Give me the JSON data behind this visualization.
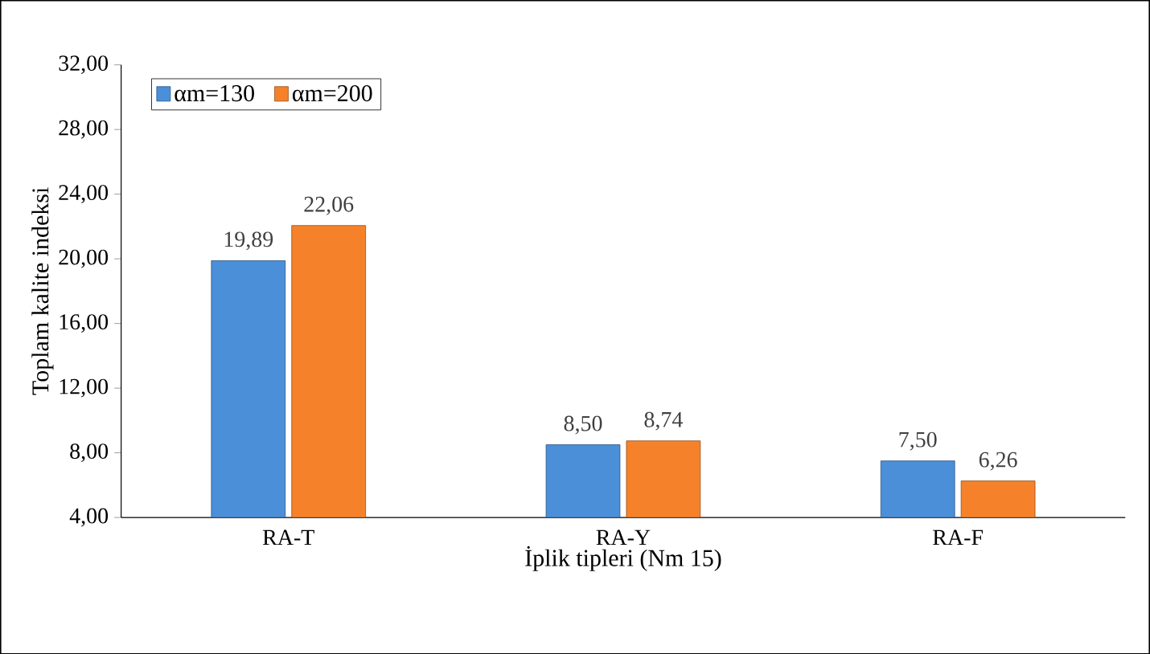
{
  "chart_data": {
    "type": "bar",
    "xlabel": "İplik tipleri (Nm 15)",
    "ylabel": "Toplam kalite indeksi",
    "categories": [
      "RA-T",
      "RA-Y",
      "RA-F"
    ],
    "series": [
      {
        "name": "αm=130",
        "color": "#4a8fd8",
        "values": [
          19.89,
          8.5,
          7.5
        ],
        "value_labels": [
          "19,89",
          "8,50",
          "7,50"
        ]
      },
      {
        "name": "αm=200",
        "color": "#f5822a",
        "values": [
          22.06,
          8.74,
          6.26
        ],
        "value_labels": [
          "22,06",
          "8,74",
          "6,26"
        ]
      }
    ],
    "ylim": [
      4,
      32
    ],
    "yticks": [
      {
        "value": 4,
        "label": "4,00"
      },
      {
        "value": 8,
        "label": "8,00"
      },
      {
        "value": 12,
        "label": "12,00"
      },
      {
        "value": 16,
        "label": "16,00"
      },
      {
        "value": 20,
        "label": "20,00"
      },
      {
        "value": 24,
        "label": "24,00"
      },
      {
        "value": 28,
        "label": "28,00"
      },
      {
        "value": 32,
        "label": "32,00"
      }
    ],
    "legend": "top left",
    "grid": false
  }
}
